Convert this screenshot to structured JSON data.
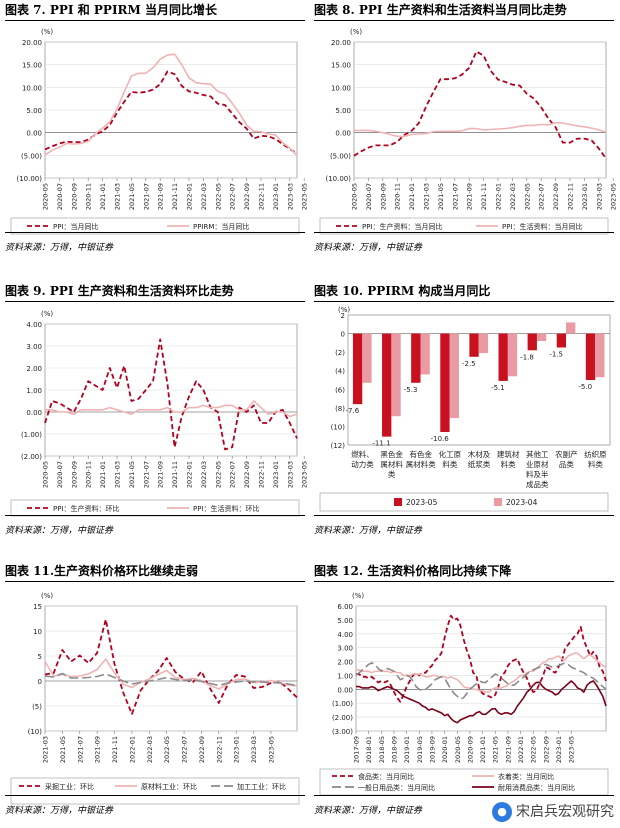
{
  "source_text": "资料来源：万得，中银证券",
  "watermark": "宋启兵宏观研究",
  "chart_data": [
    {
      "id": "c7",
      "type": "line",
      "title": "图表 7.   PPI 和 PPIRM 当月同比增长",
      "unit_label": "(%)",
      "ylim": [
        -10,
        20
      ],
      "yticks": [
        "(10.00)",
        "(5.00)",
        "0.00",
        "5.00",
        "10.00",
        "15.00",
        "20.00"
      ],
      "yticks_vals": [
        -10,
        -5,
        0,
        5,
        10,
        15,
        20
      ],
      "x_start": "2020-05",
      "xticks": [
        "2020-05",
        "2020-07",
        "2020-09",
        "2020-11",
        "2021-01",
        "2021-03",
        "2021-05",
        "2021-07",
        "2021-09",
        "2021-11",
        "2022-01",
        "2022-03",
        "2022-05",
        "2022-07",
        "2022-09",
        "2022-11",
        "2023-01",
        "2023-03",
        "2023-05"
      ],
      "series": [
        {
          "name": "PPI：当月同比",
          "color": "#b0001e",
          "style": "dash",
          "values": [
            -3.7,
            -3.0,
            -2.4,
            -2.0,
            -2.1,
            -2.1,
            -1.5,
            -0.4,
            0.3,
            1.7,
            4.4,
            6.8,
            9.0,
            8.8,
            9.0,
            9.5,
            10.7,
            13.5,
            12.9,
            10.3,
            9.1,
            8.8,
            8.3,
            8.0,
            6.4,
            6.1,
            4.2,
            2.3,
            0.9,
            -1.3,
            -0.7,
            -0.8,
            -1.4,
            -2.5,
            -3.6,
            -4.6
          ]
        },
        {
          "name": "PPIRM：当月同比",
          "color": "#efb3b3",
          "style": "solid",
          "values": [
            -4.9,
            -3.9,
            -3.2,
            -2.4,
            -2.5,
            -2.4,
            -1.9,
            -0.2,
            1.0,
            2.4,
            5.2,
            9.0,
            12.5,
            13.1,
            13.1,
            14.3,
            16.2,
            17.1,
            17.3,
            15.0,
            12.1,
            11.0,
            10.8,
            10.7,
            9.1,
            8.5,
            6.5,
            4.3,
            1.7,
            0.3,
            0.2,
            -0.3,
            -0.5,
            -2.2,
            -3.4,
            -5.0
          ]
        }
      ]
    },
    {
      "id": "c8",
      "type": "line",
      "title": "图表 8. PPI 生产资料和生活资料当月同比走势",
      "unit_label": "(%)",
      "ylim": [
        -10,
        20
      ],
      "yticks": [
        "(10.00)",
        "(5.00)",
        "0.00",
        "5.00",
        "10.00",
        "15.00",
        "20.00"
      ],
      "yticks_vals": [
        -10,
        -5,
        0,
        5,
        10,
        15,
        20
      ],
      "x_start": "2020-05",
      "xticks": [
        "2020-05",
        "2020-07",
        "2020-09",
        "2020-11",
        "2021-01",
        "2021-03",
        "2021-05",
        "2021-07",
        "2021-09",
        "2021-11",
        "2022-01",
        "2022-03",
        "2022-05",
        "2022-07",
        "2022-09",
        "2022-11",
        "2023-01",
        "2023-03",
        "2023-05"
      ],
      "series": [
        {
          "name": "PPI：生产资料：当月同比",
          "color": "#b0001e",
          "style": "dash",
          "values": [
            -5.1,
            -4.1,
            -3.3,
            -2.8,
            -2.8,
            -2.8,
            -2.0,
            -0.5,
            0.4,
            2.1,
            5.7,
            8.9,
            11.8,
            11.8,
            12.0,
            12.8,
            14.3,
            17.9,
            17.0,
            13.6,
            11.7,
            11.2,
            10.6,
            10.4,
            8.6,
            7.5,
            5.6,
            3.1,
            1.2,
            -2.2,
            -2.2,
            -1.3,
            -1.3,
            -1.7,
            -3.5,
            -5.7
          ]
        },
        {
          "name": "PPI：生活资料：当月同比",
          "color": "#efb3b3",
          "style": "solid",
          "values": [
            0.5,
            0.5,
            0.5,
            0.3,
            0.0,
            -0.4,
            -0.8,
            -0.8,
            -0.4,
            -0.3,
            -0.2,
            0.2,
            0.3,
            0.3,
            0.3,
            0.4,
            0.9,
            0.9,
            0.6,
            0.7,
            0.8,
            0.9,
            1.1,
            1.4,
            1.6,
            1.6,
            1.8,
            1.7,
            2.2,
            2.1,
            1.8,
            1.5,
            1.3,
            1.0,
            0.6,
            0.1
          ]
        }
      ]
    },
    {
      "id": "c9",
      "type": "line",
      "title": "图表 9.   PPI 生产资料和生活资料环比走势",
      "unit_label": "(%)",
      "ylim": [
        -2,
        4
      ],
      "yticks": [
        "(2.00)",
        "(1.00)",
        "0.00",
        "1.00",
        "2.00",
        "3.00",
        "4.00"
      ],
      "yticks_vals": [
        -2,
        -1,
        0,
        1,
        2,
        3,
        4
      ],
      "x_start": "2020-05",
      "xticks": [
        "2020-05",
        "2020-07",
        "2020-09",
        "2020-11",
        "2021-01",
        "2021-03",
        "2021-05",
        "2021-07",
        "2021-09",
        "2021-11",
        "2022-01",
        "2022-03",
        "2022-05",
        "2022-07",
        "2022-09",
        "2022-11",
        "2023-01",
        "2023-03",
        "2023-05"
      ],
      "series": [
        {
          "name": "PPI：生产资料：环比",
          "color": "#b0001e",
          "style": "dash",
          "values": [
            -0.5,
            0.5,
            0.4,
            0.2,
            0.0,
            0.6,
            1.4,
            1.2,
            1.0,
            2.0,
            1.1,
            2.1,
            0.5,
            0.6,
            1.0,
            1.4,
            3.3,
            1.3,
            -1.6,
            -0.2,
            0.7,
            1.4,
            1.0,
            0.2,
            0.0,
            -1.7,
            -1.6,
            0.2,
            0.0,
            0.3,
            -0.5,
            -0.5,
            0.0,
            0.1,
            -0.5,
            -1.2
          ]
        },
        {
          "name": "PPI：生活资料：环比",
          "color": "#efb3b3",
          "style": "solid",
          "values": [
            0.1,
            0.1,
            0.0,
            0.0,
            -0.1,
            0.1,
            0.1,
            0.1,
            0.1,
            0.2,
            0.1,
            0.0,
            -0.1,
            0.1,
            0.1,
            0.1,
            0.1,
            0.2,
            0.0,
            0.0,
            0.2,
            0.2,
            0.3,
            0.2,
            0.2,
            0.3,
            0.3,
            0.1,
            0.1,
            0.5,
            0.2,
            -0.1,
            0.0,
            0.0,
            -0.2,
            -0.1
          ]
        }
      ]
    },
    {
      "id": "c10",
      "type": "bar",
      "title": "图表 10. PPIRM 构成当月同比",
      "unit_label": "(%)",
      "ylim": [
        -12,
        2
      ],
      "yticks": [
        "(12)",
        "(10)",
        "(8)",
        "(6)",
        "(4)",
        "(2)",
        "0",
        "2"
      ],
      "yticks_vals": [
        -12,
        -10,
        -8,
        -6,
        -4,
        -2,
        0,
        2
      ],
      "categories": [
        [
          "燃料、",
          "动力类"
        ],
        [
          "黑色金",
          "属材料",
          "类"
        ],
        [
          "有色金",
          "属材料类"
        ],
        [
          "化工原",
          "料类"
        ],
        [
          "木材及",
          "纸浆类"
        ],
        [
          "建筑材",
          "料类"
        ],
        [
          "其他工",
          "业原材",
          "料及半",
          "成品类"
        ],
        [
          "农副产",
          "品类"
        ],
        [
          "纺织原",
          "料类"
        ]
      ],
      "series": [
        {
          "name": "2023-05",
          "color": "#c8101e",
          "values": [
            -7.6,
            -11.1,
            -5.3,
            -10.6,
            -2.5,
            -5.1,
            -1.8,
            -1.5,
            -5.0
          ]
        },
        {
          "name": "2023-04",
          "color": "#e99aa2",
          "values": [
            -5.3,
            -8.9,
            -4.4,
            -9.1,
            -2.1,
            -4.6,
            -0.8,
            1.2,
            -4.7
          ]
        }
      ],
      "data_labels": [
        "-7.6",
        "-11.1",
        "-5.3",
        "-10.6",
        "-2.5",
        "-5.1",
        "-1.8",
        "-1.5",
        "-5.0"
      ]
    },
    {
      "id": "c11",
      "type": "line",
      "title": "图表 11.生产资料价格环比继续走弱",
      "unit_label": "(%)",
      "ylim": [
        -10,
        15
      ],
      "yticks": [
        "(10)",
        "(5)",
        "0",
        "5",
        "10",
        "15"
      ],
      "yticks_vals": [
        -10,
        -5,
        0,
        5,
        10,
        15
      ],
      "x_start": "2021-03",
      "xticks": [
        "2021-03",
        "2021-05",
        "2021-07",
        "2021-09",
        "2021-11",
        "2022-01",
        "2022-03",
        "2022-05",
        "2022-07",
        "2022-09",
        "2022-11",
        "2023-01",
        "2023-03",
        "2023-05"
      ],
      "series": [
        {
          "name": "采掘工业：环比",
          "color": "#b0001e",
          "style": "dash",
          "values": [
            1.3,
            1.6,
            6.2,
            3.9,
            5.1,
            3.6,
            5.6,
            12.3,
            3.4,
            -2.3,
            -6.6,
            -1.9,
            0.3,
            2.0,
            4.6,
            1.8,
            0.4,
            -0.3,
            1.9,
            -1.5,
            -4.4,
            -0.8,
            1.2,
            0.9,
            -1.4,
            -1.2,
            -0.4,
            -0.1,
            -1.6,
            -3.3
          ]
        },
        {
          "name": "原材料工业：环比",
          "color": "#efb3b3",
          "style": "solid",
          "values": [
            3.9,
            1.0,
            1.3,
            0.9,
            1.0,
            1.4,
            2.3,
            4.4,
            1.6,
            -0.6,
            -1.3,
            -0.3,
            0.4,
            1.3,
            2.1,
            0.7,
            0.3,
            0.5,
            0.1,
            -0.9,
            -1.6,
            -0.6,
            0.3,
            0.4,
            -0.3,
            -0.2,
            0.1,
            -0.3,
            -0.8,
            -1.0
          ]
        },
        {
          "name": "加工工业：环比",
          "color": "#8a8a8a",
          "style": "longdash",
          "values": [
            1.0,
            0.8,
            1.5,
            0.6,
            0.6,
            0.7,
            0.9,
            1.4,
            0.7,
            0.0,
            -0.6,
            -0.3,
            0.0,
            0.3,
            0.7,
            0.3,
            0.1,
            0.2,
            -0.1,
            -0.5,
            -0.9,
            -0.4,
            -0.2,
            0.0,
            -0.2,
            -0.2,
            -0.3,
            -0.4,
            -0.6,
            -0.9
          ]
        }
      ]
    },
    {
      "id": "c12",
      "type": "line",
      "title": "图表 12.  生活资料价格同比持续下降",
      "unit_label": "(%)",
      "ylim": [
        -3,
        6
      ],
      "yticks": [
        "(3.00)",
        "(2.00)",
        "(1.00)",
        "0.00",
        "1.00",
        "2.00",
        "3.00",
        "4.00",
        "5.00",
        "6.00"
      ],
      "yticks_vals": [
        -3,
        -2,
        -1,
        0,
        1,
        2,
        3,
        4,
        5,
        6
      ],
      "x_start": "2017-09",
      "xticks": [
        "2017-09",
        "2018-01",
        "2018-05",
        "2018-09",
        "2019-01",
        "2019-05",
        "2019-09",
        "2020-01",
        "2020-05",
        "2020-09",
        "2021-01",
        "2021-05",
        "2021-09",
        "2022-01",
        "2022-05",
        "2022-09",
        "2023-01",
        "2023-05"
      ],
      "series": [
        {
          "name": "食品类：当月同比",
          "color": "#b0001e",
          "style": "dash",
          "values": [
            1.1,
            1.1,
            0.9,
            0.9,
            0.8,
            0.9,
            0.7,
            0.5,
            0.6,
            0.5,
            0.6,
            0.3,
            -0.2,
            -0.6,
            -0.9,
            -0.4,
            0.2,
            0.6,
            1.0,
            1.2,
            1.0,
            1.2,
            1.2,
            1.5,
            1.7,
            2.1,
            2.3,
            2.6,
            3.7,
            4.6,
            5.3,
            5.0,
            5.1,
            4.6,
            3.6,
            2.8,
            2.2,
            1.2,
            1.0,
            0.0,
            -0.3,
            -0.4,
            -0.5,
            -0.6,
            -0.4,
            0.2,
            1.0,
            1.2,
            1.7,
            2.0,
            2.1,
            2.2,
            1.6,
            1.2,
            0.8,
            0.2,
            -0.2,
            -0.1,
            0.4,
            0.9,
            1.6,
            1.5,
            1.3,
            1.2,
            1.6,
            2.0,
            2.9,
            3.2,
            3.5,
            3.8,
            4.0,
            4.5,
            3.5,
            3.0,
            2.4,
            2.7,
            2.4,
            1.6,
            1.3,
            0.6
          ]
        },
        {
          "name": "衣着类：当月同比",
          "color": "#efb3b3",
          "style": "solid",
          "values": [
            1.4,
            1.4,
            1.3,
            1.3,
            1.3,
            1.2,
            1.3,
            1.3,
            1.4,
            1.3,
            1.3,
            1.2,
            1.3,
            1.2,
            1.2,
            1.0,
            1.0,
            1.0,
            1.1,
            1.1,
            1.1,
            1.0,
            0.9,
            0.9,
            1.0,
            1.0,
            0.9,
            0.9,
            0.9,
            0.8,
            0.9,
            0.8,
            0.7,
            0.5,
            0.2,
            0.1,
            0.1,
            0.0,
            0.0,
            -0.1,
            -0.1,
            -0.2,
            -0.2,
            0.0,
            0.1,
            0.1,
            0.1,
            0.2,
            0.3,
            0.5,
            0.6,
            0.8,
            1.0,
            1.0,
            1.2,
            1.3,
            1.3,
            1.5,
            1.7,
            1.9,
            2.0,
            2.2,
            2.2,
            2.3,
            2.4,
            2.2,
            2.1,
            2.4,
            2.5,
            2.6,
            2.6,
            2.4,
            2.2,
            2.4,
            2.5,
            2.3,
            2.1,
            1.9,
            1.7,
            1.6
          ]
        },
        {
          "name": "一般日用品类：当月同比",
          "color": "#8a8a8a",
          "style": "longdash",
          "values": [
            1.0,
            1.2,
            1.4,
            1.6,
            1.8,
            1.9,
            1.8,
            1.5,
            1.3,
            1.4,
            1.5,
            1.4,
            1.3,
            1.0,
            0.7,
            0.8,
            1.0,
            0.9,
            0.6,
            0.2,
            0.0,
            -0.1,
            0.0,
            0.2,
            0.4,
            0.7,
            0.8,
            0.9,
            0.8,
            0.4,
            0.0,
            -0.3,
            -0.5,
            -0.7,
            -0.6,
            -0.3,
            0.0,
            0.2,
            0.4,
            0.6,
            0.5,
            0.5,
            0.7,
            0.9,
            1.1,
            1.0,
            0.8,
            0.6,
            0.4,
            0.3,
            0.3,
            0.5,
            0.7,
            0.9,
            1.1,
            1.3,
            1.4,
            1.5,
            1.6,
            1.7,
            1.8,
            1.7,
            1.6,
            1.6,
            1.7,
            1.8,
            1.9,
            1.8,
            1.6,
            1.5,
            1.4,
            1.3,
            1.2,
            1.0,
            0.9,
            0.8,
            0.6,
            0.4,
            0.2,
            0.0
          ]
        },
        {
          "name": "耐用消费品类：当月同比",
          "color": "#7a0018",
          "style": "solid",
          "values": [
            0.2,
            0.2,
            0.1,
            0.1,
            0.1,
            0.2,
            0.1,
            -0.1,
            0.0,
            0.1,
            0.2,
            0.1,
            0.0,
            -0.1,
            -0.3,
            -0.5,
            -0.6,
            -0.7,
            -0.8,
            -0.9,
            -1.0,
            -1.2,
            -1.3,
            -1.5,
            -1.4,
            -1.5,
            -1.6,
            -1.7,
            -1.9,
            -1.8,
            -2.1,
            -2.3,
            -2.4,
            -2.2,
            -2.1,
            -2.0,
            -1.9,
            -1.9,
            -1.7,
            -1.6,
            -1.8,
            -1.8,
            -1.6,
            -1.4,
            -1.4,
            -1.7,
            -1.8,
            -1.7,
            -1.7,
            -1.8,
            -1.6,
            -1.2,
            -0.9,
            -0.6,
            -0.2,
            0.0,
            0.3,
            0.5,
            0.5,
            0.2,
            0.0,
            -0.1,
            -0.2,
            -0.4,
            -0.3,
            0.0,
            0.2,
            0.4,
            0.6,
            0.4,
            0.1,
            0.0,
            -0.2,
            0.3,
            0.5,
            0.6,
            0.3,
            -0.1,
            -0.5,
            -1.2
          ]
        }
      ]
    }
  ]
}
